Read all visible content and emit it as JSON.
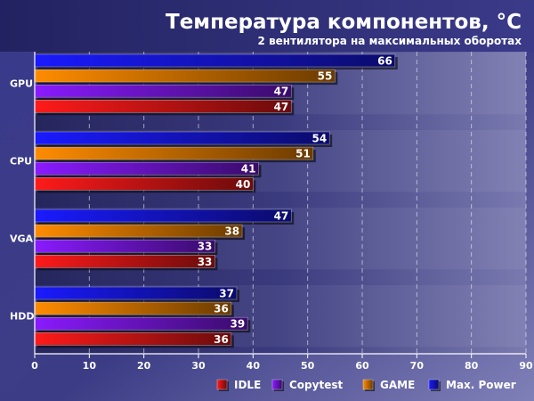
{
  "chart_data": {
    "type": "bar",
    "orientation": "horizontal",
    "title": "Температура компонентов, °C",
    "subtitle": "2 вентилятора на максимальных оборотах",
    "categories": [
      "GPU",
      "CPU",
      "VGA",
      "HDD"
    ],
    "series": [
      {
        "name": "Max. Power",
        "color": "#1a1aff",
        "values": [
          66,
          54,
          47,
          37
        ]
      },
      {
        "name": "GAME",
        "color": "#ff8c00",
        "values": [
          55,
          51,
          38,
          36
        ]
      },
      {
        "name": "Copytest",
        "color": "#8a1aff",
        "values": [
          47,
          41,
          33,
          39
        ]
      },
      {
        "name": "IDLE",
        "color": "#ff1a1a",
        "values": [
          47,
          40,
          33,
          36
        ]
      }
    ],
    "xlim": [
      0,
      90
    ],
    "xticks": [
      0,
      10,
      20,
      30,
      40,
      50,
      60,
      70,
      80,
      90
    ],
    "legend_order": [
      "IDLE",
      "Copytest",
      "GAME",
      "Max. Power"
    ],
    "legend_position": "bottom-right",
    "grid": true,
    "value_labels": true
  }
}
